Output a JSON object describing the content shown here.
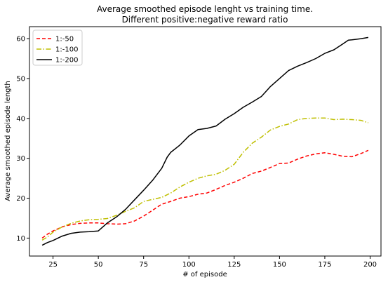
{
  "chart_data": {
    "type": "line",
    "title": "Average smoothed episode lenght vs training time.",
    "subtitle": "Different positive:negative reward ratio",
    "xlabel": "# of episode",
    "ylabel": "Average smoothed episode length",
    "xlim": [
      12,
      206
    ],
    "ylim": [
      5.5,
      63
    ],
    "xticks": [
      25,
      50,
      75,
      100,
      125,
      150,
      175,
      200
    ],
    "yticks": [
      10,
      20,
      30,
      40,
      50,
      60
    ],
    "grid": false,
    "legend_position": "top-left",
    "series": [
      {
        "name": "1:-50",
        "color": "#ff0000",
        "dash": "dashed",
        "x": [
          19,
          22,
          25,
          30,
          35,
          40,
          45,
          50,
          55,
          60,
          65,
          70,
          75,
          80,
          85,
          90,
          95,
          100,
          105,
          110,
          115,
          120,
          125,
          130,
          135,
          140,
          145,
          150,
          155,
          160,
          165,
          170,
          175,
          180,
          185,
          190,
          195,
          199
        ],
        "y": [
          10.0,
          11.0,
          11.8,
          12.8,
          13.4,
          13.7,
          13.8,
          13.8,
          13.6,
          13.5,
          13.6,
          14.3,
          15.5,
          17.0,
          18.5,
          19.2,
          20.0,
          20.4,
          21.0,
          21.3,
          22.2,
          23.2,
          24.0,
          25.0,
          26.2,
          26.8,
          27.7,
          28.7,
          28.8,
          29.8,
          30.6,
          31.1,
          31.4,
          31.0,
          30.5,
          30.4,
          31.2,
          32.0
        ]
      },
      {
        "name": "1:-100",
        "color": "#bfbf00",
        "dash": "dashdot",
        "x": [
          19,
          22,
          25,
          30,
          35,
          40,
          45,
          50,
          55,
          60,
          65,
          70,
          75,
          80,
          85,
          90,
          95,
          100,
          105,
          110,
          115,
          120,
          125,
          130,
          135,
          140,
          145,
          150,
          155,
          160,
          165,
          170,
          175,
          180,
          185,
          190,
          195,
          199
        ],
        "y": [
          9.5,
          10.3,
          11.5,
          12.8,
          13.7,
          14.3,
          14.6,
          14.7,
          14.9,
          15.7,
          16.7,
          17.6,
          19.2,
          19.7,
          20.2,
          21.3,
          22.8,
          24.0,
          25.0,
          25.6,
          26.0,
          27.0,
          28.5,
          31.5,
          33.8,
          35.3,
          37.1,
          38.0,
          38.6,
          39.7,
          40.0,
          40.1,
          40.1,
          39.7,
          39.8,
          39.7,
          39.5,
          38.9
        ]
      },
      {
        "name": "1:-200",
        "color": "#000000",
        "dash": "solid",
        "x": [
          19,
          22,
          25,
          30,
          35,
          40,
          45,
          50,
          55,
          60,
          65,
          70,
          75,
          80,
          85,
          88,
          90,
          95,
          100,
          105,
          110,
          115,
          120,
          125,
          130,
          135,
          140,
          145,
          150,
          155,
          160,
          165,
          170,
          175,
          180,
          185,
          188,
          190,
          195,
          199
        ],
        "y": [
          8.2,
          8.9,
          9.4,
          10.5,
          11.2,
          11.5,
          11.6,
          11.8,
          13.8,
          15.3,
          17.2,
          19.6,
          22.0,
          24.5,
          27.5,
          30.3,
          31.5,
          33.3,
          35.6,
          37.2,
          37.5,
          38.1,
          39.8,
          41.2,
          42.8,
          44.1,
          45.5,
          48.0,
          50.0,
          52.0,
          53.1,
          54.0,
          55.0,
          56.3,
          57.2,
          58.7,
          59.6,
          59.7,
          60.0,
          60.3
        ]
      }
    ]
  }
}
